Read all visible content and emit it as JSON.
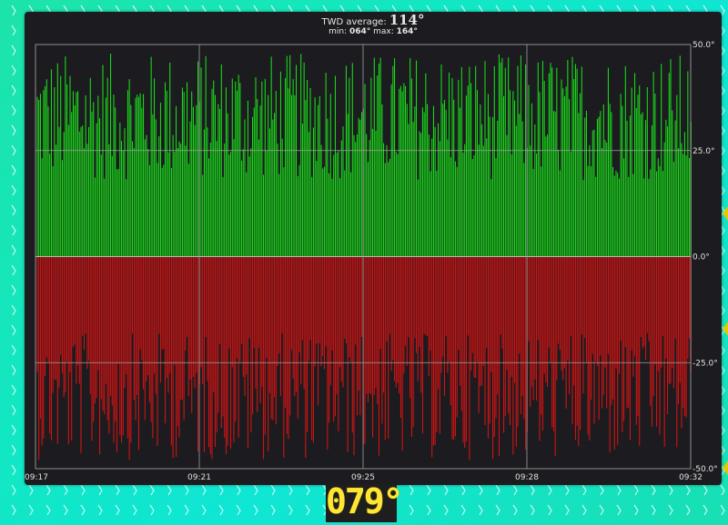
{
  "chart": {
    "title": {
      "label": "TWD average:",
      "average": "114°",
      "min_label": "min:",
      "min_value": "064°",
      "max_label": "max:",
      "max_value": "164°"
    }
  },
  "readout": {
    "value": "079°",
    "color": "#ffe633"
  },
  "colors": {
    "positive": "#19e619",
    "negative": "#e01212",
    "panel": "#1c1c20",
    "grid": "#bfbfbf"
  },
  "chart_data": {
    "type": "bar",
    "y_unit": "°",
    "ylim": [
      -50,
      50
    ],
    "y_ticks": [
      "50.0°",
      "25.0°",
      "0.0°",
      "-25.0°",
      "-50.0°"
    ],
    "y_tick_values": [
      50,
      25,
      0,
      -25,
      -50
    ],
    "x_ticks": [
      "09:17",
      "09:21",
      "09:25",
      "09:28",
      "09:32"
    ],
    "grid": true,
    "bar_count": 420,
    "positive_color": "#19e619",
    "negative_color": "#e01212"
  }
}
